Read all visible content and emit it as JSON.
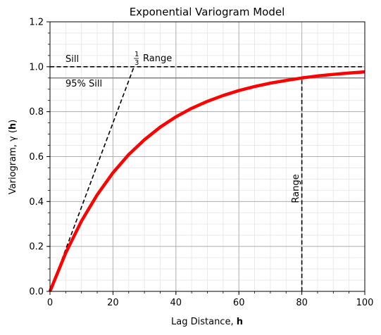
{
  "chart_data": {
    "type": "line",
    "title": "Exponential Variogram Model",
    "xlabel_text": "Lag Distance, ",
    "xlabel_bold": "h",
    "ylabel_text": "Variogram, γ (",
    "ylabel_bold": "h",
    "ylabel_close": ")",
    "xlim": [
      0,
      100
    ],
    "ylim": [
      0,
      1.2
    ],
    "x_ticks": [
      0,
      20,
      40,
      60,
      80,
      100
    ],
    "y_ticks": [
      0.0,
      0.2,
      0.4,
      0.6,
      0.8,
      1.0,
      1.2
    ],
    "x_tick_labels": [
      "0",
      "20",
      "40",
      "60",
      "80",
      "100"
    ],
    "y_tick_labels": [
      "0.0",
      "0.2",
      "0.4",
      "0.6",
      "0.8",
      "1.0",
      "1.2"
    ],
    "grid": true,
    "model": {
      "sill": 1.0,
      "range": 80,
      "practical_fraction": 0.95
    },
    "series": [
      {
        "kind": "curve",
        "color": "#ff0000",
        "x": [
          0,
          5,
          10,
          15,
          20,
          25,
          30,
          35,
          40,
          45,
          50,
          55,
          60,
          65,
          70,
          75,
          80,
          85,
          90,
          95,
          100
        ],
        "y": [
          0,
          0.171,
          0.313,
          0.43,
          0.528,
          0.609,
          0.675,
          0.731,
          0.777,
          0.815,
          0.846,
          0.872,
          0.894,
          0.912,
          0.927,
          0.939,
          0.95,
          0.959,
          0.966,
          0.972,
          0.977
        ]
      },
      {
        "kind": "sill-line",
        "color": "#000000",
        "y": 1.0
      },
      {
        "kind": "practical-sill-line",
        "color": "#808080",
        "y": 0.95
      },
      {
        "kind": "tangent-line",
        "color": "#000000",
        "x": [
          0,
          26.67
        ],
        "y": [
          0,
          1.0
        ]
      },
      {
        "kind": "range-line",
        "color": "#000000",
        "x": 80,
        "y": [
          0,
          0.95
        ]
      }
    ],
    "annotations": {
      "sill": "Sill",
      "sill_95": "95% Sill",
      "range_vertical": "Range",
      "third_range_num": "1",
      "third_range_den": "3",
      "third_range_text": "Range"
    }
  }
}
